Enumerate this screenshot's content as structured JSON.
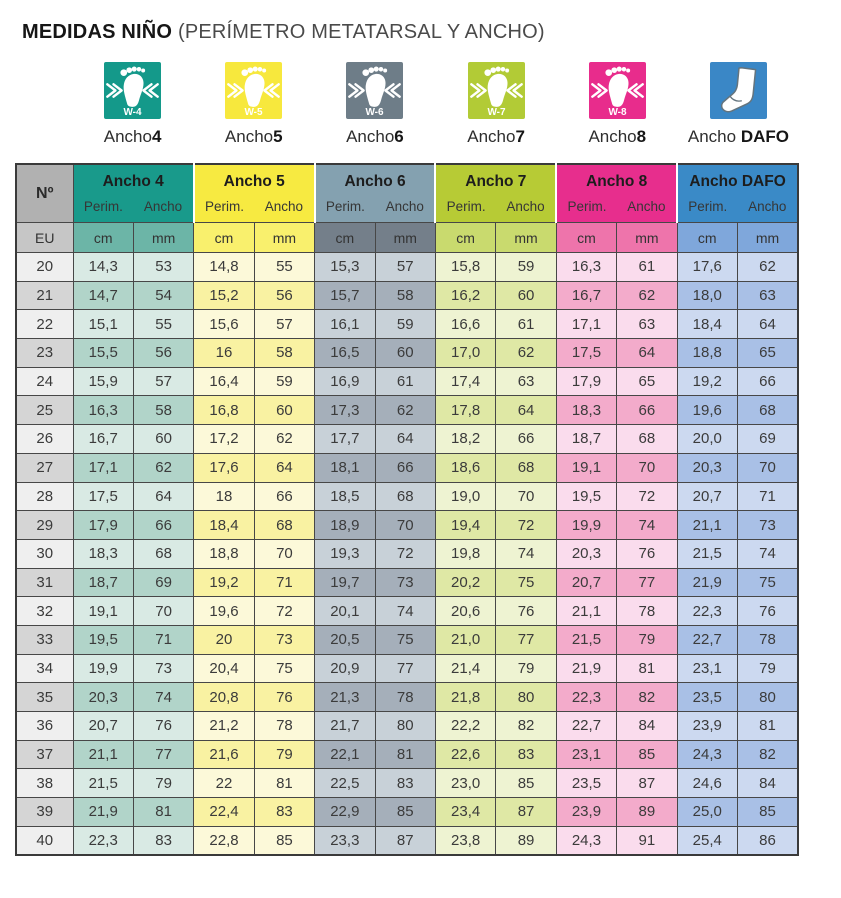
{
  "title": {
    "bold": "MEDIDAS NIÑO",
    "rest": "(PERÍMETRO METATARSAL Y ANCHO)"
  },
  "icons": [
    {
      "badge": "W-4",
      "label": "Ancho",
      "strong": "4",
      "color": "#14998a",
      "type": "foot"
    },
    {
      "badge": "W-5",
      "label": "Ancho",
      "strong": "5",
      "color": "#f7e83d",
      "type": "foot"
    },
    {
      "badge": "W-6",
      "label": "Ancho",
      "strong": "6",
      "color": "#6e7d88",
      "type": "foot"
    },
    {
      "badge": "W-7",
      "label": "Ancho",
      "strong": "7",
      "color": "#b2cb36",
      "type": "foot"
    },
    {
      "badge": "W-8",
      "label": "Ancho",
      "strong": "8",
      "color": "#e82c8c",
      "type": "foot"
    },
    {
      "badge": "",
      "label": "Ancho ",
      "strong": "DAFO",
      "color": "#3a87c6",
      "type": "sock"
    }
  ],
  "table": {
    "corner": "Nº",
    "eu": "EU",
    "size_col": {
      "header": "#b1b1b1",
      "eu": "#c6c6c6",
      "light": "#efefef",
      "dark": "#d5d5d5"
    },
    "groups": [
      {
        "title": "Ancho 4",
        "sub": [
          "Perim.",
          "Ancho"
        ],
        "units": [
          "cm",
          "mm"
        ],
        "colors": {
          "header": "#199a8b",
          "unit": "#6cb5a7",
          "light": "#d9eae4",
          "dark": "#b1d4c9"
        }
      },
      {
        "title": "Ancho 5",
        "sub": [
          "Perim.",
          "Ancho"
        ],
        "units": [
          "cm",
          "mm"
        ],
        "colors": {
          "header": "#f7ea41",
          "unit": "#f9f06d",
          "light": "#fcf9d9",
          "dark": "#f9f2a2"
        }
      },
      {
        "title": "Ancho 6",
        "sub": [
          "Perim.",
          "Ancho"
        ],
        "units": [
          "cm",
          "mm"
        ],
        "colors": {
          "header": "#84a1b0",
          "unit": "#747f8a",
          "light": "#c8d1d8",
          "dark": "#a5afba"
        }
      },
      {
        "title": "Ancho 7",
        "sub": [
          "Perim.",
          "Ancho"
        ],
        "units": [
          "cm",
          "mm"
        ],
        "colors": {
          "header": "#b7cb35",
          "unit": "#c9da6e",
          "light": "#eef3d2",
          "dark": "#dfe8a5"
        }
      },
      {
        "title": "Ancho 8",
        "sub": [
          "Perim.",
          "Ancho"
        ],
        "units": [
          "cm",
          "mm"
        ],
        "colors": {
          "header": "#e72e8d",
          "unit": "#ee74ab",
          "light": "#fadced",
          "dark": "#f3abcb"
        }
      },
      {
        "title": "Ancho DAFO",
        "sub": [
          "Perim.",
          "Ancho"
        ],
        "units": [
          "cm",
          "mm"
        ],
        "colors": {
          "header": "#3a8ac7",
          "unit": "#7fa7db",
          "light": "#ccd9f0",
          "dark": "#a9c0e6"
        }
      }
    ],
    "rows": [
      {
        "size": "20",
        "values": [
          "14,3",
          "53",
          "14,8",
          "55",
          "15,3",
          "57",
          "15,8",
          "59",
          "16,3",
          "61",
          "17,6",
          "62"
        ]
      },
      {
        "size": "21",
        "values": [
          "14,7",
          "54",
          "15,2",
          "56",
          "15,7",
          "58",
          "16,2",
          "60",
          "16,7",
          "62",
          "18,0",
          "63"
        ]
      },
      {
        "size": "22",
        "values": [
          "15,1",
          "55",
          "15,6",
          "57",
          "16,1",
          "59",
          "16,6",
          "61",
          "17,1",
          "63",
          "18,4",
          "64"
        ]
      },
      {
        "size": "23",
        "values": [
          "15,5",
          "56",
          "16",
          "58",
          "16,5",
          "60",
          "17,0",
          "62",
          "17,5",
          "64",
          "18,8",
          "65"
        ]
      },
      {
        "size": "24",
        "values": [
          "15,9",
          "57",
          "16,4",
          "59",
          "16,9",
          "61",
          "17,4",
          "63",
          "17,9",
          "65",
          "19,2",
          "66"
        ]
      },
      {
        "size": "25",
        "values": [
          "16,3",
          "58",
          "16,8",
          "60",
          "17,3",
          "62",
          "17,8",
          "64",
          "18,3",
          "66",
          "19,6",
          "68"
        ]
      },
      {
        "size": "26",
        "values": [
          "16,7",
          "60",
          "17,2",
          "62",
          "17,7",
          "64",
          "18,2",
          "66",
          "18,7",
          "68",
          "20,0",
          "69"
        ]
      },
      {
        "size": "27",
        "values": [
          "17,1",
          "62",
          "17,6",
          "64",
          "18,1",
          "66",
          "18,6",
          "68",
          "19,1",
          "70",
          "20,3",
          "70"
        ]
      },
      {
        "size": "28",
        "values": [
          "17,5",
          "64",
          "18",
          "66",
          "18,5",
          "68",
          "19,0",
          "70",
          "19,5",
          "72",
          "20,7",
          "71"
        ]
      },
      {
        "size": "29",
        "values": [
          "17,9",
          "66",
          "18,4",
          "68",
          "18,9",
          "70",
          "19,4",
          "72",
          "19,9",
          "74",
          "21,1",
          "73"
        ]
      },
      {
        "size": "30",
        "values": [
          "18,3",
          "68",
          "18,8",
          "70",
          "19,3",
          "72",
          "19,8",
          "74",
          "20,3",
          "76",
          "21,5",
          "74"
        ]
      },
      {
        "size": "31",
        "values": [
          "18,7",
          "69",
          "19,2",
          "71",
          "19,7",
          "73",
          "20,2",
          "75",
          "20,7",
          "77",
          "21,9",
          "75"
        ]
      },
      {
        "size": "32",
        "values": [
          "19,1",
          "70",
          "19,6",
          "72",
          "20,1",
          "74",
          "20,6",
          "76",
          "21,1",
          "78",
          "22,3",
          "76"
        ]
      },
      {
        "size": "33",
        "values": [
          "19,5",
          "71",
          "20",
          "73",
          "20,5",
          "75",
          "21,0",
          "77",
          "21,5",
          "79",
          "22,7",
          "78"
        ]
      },
      {
        "size": "34",
        "values": [
          "19,9",
          "73",
          "20,4",
          "75",
          "20,9",
          "77",
          "21,4",
          "79",
          "21,9",
          "81",
          "23,1",
          "79"
        ]
      },
      {
        "size": "35",
        "values": [
          "20,3",
          "74",
          "20,8",
          "76",
          "21,3",
          "78",
          "21,8",
          "80",
          "22,3",
          "82",
          "23,5",
          "80"
        ]
      },
      {
        "size": "36",
        "values": [
          "20,7",
          "76",
          "21,2",
          "78",
          "21,7",
          "80",
          "22,2",
          "82",
          "22,7",
          "84",
          "23,9",
          "81"
        ]
      },
      {
        "size": "37",
        "values": [
          "21,1",
          "77",
          "21,6",
          "79",
          "22,1",
          "81",
          "22,6",
          "83",
          "23,1",
          "85",
          "24,3",
          "82"
        ]
      },
      {
        "size": "38",
        "values": [
          "21,5",
          "79",
          "22",
          "81",
          "22,5",
          "83",
          "23,0",
          "85",
          "23,5",
          "87",
          "24,6",
          "84"
        ]
      },
      {
        "size": "39",
        "values": [
          "21,9",
          "81",
          "22,4",
          "83",
          "22,9",
          "85",
          "23,4",
          "87",
          "23,9",
          "89",
          "25,0",
          "85"
        ]
      },
      {
        "size": "40",
        "values": [
          "22,3",
          "83",
          "22,8",
          "85",
          "23,3",
          "87",
          "23,8",
          "89",
          "24,3",
          "91",
          "25,4",
          "86"
        ]
      }
    ]
  }
}
